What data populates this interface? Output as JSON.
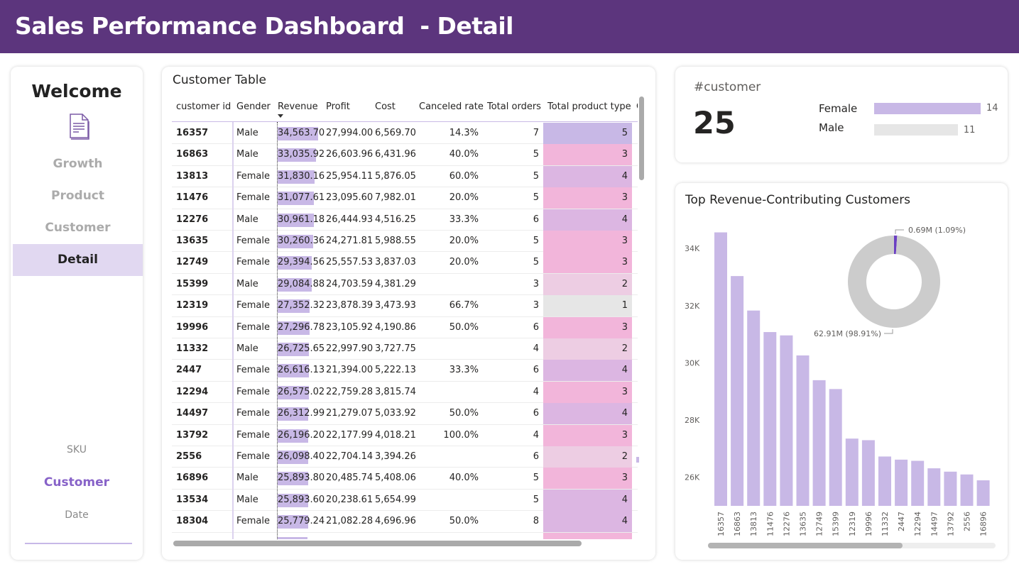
{
  "header": {
    "title": "Sales Performance Dashboard  - Detail"
  },
  "sidebar": {
    "welcome": "Welcome",
    "nav_items": [
      {
        "label": "Growth",
        "active": false
      },
      {
        "label": "Product",
        "active": false
      },
      {
        "label": "Customer",
        "active": false
      },
      {
        "label": "Detail",
        "active": true
      }
    ],
    "sub_items": [
      {
        "label": "SKU",
        "active": false
      },
      {
        "label": "Customer",
        "active": true
      },
      {
        "label": "Date",
        "active": false
      }
    ]
  },
  "table": {
    "title": "Customer Table",
    "columns": [
      "customer id",
      "Gender",
      "Revenue",
      "Profit",
      "Cost",
      "Canceled rate",
      "Total orders",
      "Total product type",
      "C"
    ],
    "sorted_column": "Revenue",
    "rows": [
      {
        "id": "16357",
        "gender": "Male",
        "revenue": "34,563.70",
        "profit": "27,994.00",
        "cost": "6,569.70",
        "canceled": "14.3%",
        "orders": "7",
        "ptype": "5"
      },
      {
        "id": "16863",
        "gender": "Male",
        "revenue": "33,035.92",
        "profit": "26,603.96",
        "cost": "6,431.96",
        "canceled": "40.0%",
        "orders": "5",
        "ptype": "3"
      },
      {
        "id": "13813",
        "gender": "Female",
        "revenue": "31,830.16",
        "profit": "25,954.11",
        "cost": "5,876.05",
        "canceled": "60.0%",
        "orders": "5",
        "ptype": "4"
      },
      {
        "id": "11476",
        "gender": "Female",
        "revenue": "31,077.61",
        "profit": "23,095.60",
        "cost": "7,982.01",
        "canceled": "20.0%",
        "orders": "5",
        "ptype": "3"
      },
      {
        "id": "12276",
        "gender": "Male",
        "revenue": "30,961.18",
        "profit": "26,444.93",
        "cost": "4,516.25",
        "canceled": "33.3%",
        "orders": "6",
        "ptype": "4"
      },
      {
        "id": "13635",
        "gender": "Female",
        "revenue": "30,260.36",
        "profit": "24,271.81",
        "cost": "5,988.55",
        "canceled": "20.0%",
        "orders": "5",
        "ptype": "3"
      },
      {
        "id": "12749",
        "gender": "Female",
        "revenue": "29,394.56",
        "profit": "25,557.53",
        "cost": "3,837.03",
        "canceled": "20.0%",
        "orders": "5",
        "ptype": "3"
      },
      {
        "id": "15399",
        "gender": "Male",
        "revenue": "29,084.88",
        "profit": "24,703.59",
        "cost": "4,381.29",
        "canceled": "",
        "orders": "3",
        "ptype": "2"
      },
      {
        "id": "12319",
        "gender": "Female",
        "revenue": "27,352.32",
        "profit": "23,878.39",
        "cost": "3,473.93",
        "canceled": "66.7%",
        "orders": "3",
        "ptype": "1"
      },
      {
        "id": "19996",
        "gender": "Female",
        "revenue": "27,296.78",
        "profit": "23,105.92",
        "cost": "4,190.86",
        "canceled": "50.0%",
        "orders": "6",
        "ptype": "3"
      },
      {
        "id": "11332",
        "gender": "Male",
        "revenue": "26,725.65",
        "profit": "22,997.90",
        "cost": "3,727.75",
        "canceled": "",
        "orders": "4",
        "ptype": "2"
      },
      {
        "id": "2447",
        "gender": "Female",
        "revenue": "26,616.13",
        "profit": "21,394.00",
        "cost": "5,222.13",
        "canceled": "33.3%",
        "orders": "6",
        "ptype": "4"
      },
      {
        "id": "12294",
        "gender": "Female",
        "revenue": "26,575.02",
        "profit": "22,759.28",
        "cost": "3,815.74",
        "canceled": "",
        "orders": "4",
        "ptype": "3"
      },
      {
        "id": "14497",
        "gender": "Female",
        "revenue": "26,312.99",
        "profit": "21,279.07",
        "cost": "5,033.92",
        "canceled": "50.0%",
        "orders": "6",
        "ptype": "4"
      },
      {
        "id": "13792",
        "gender": "Female",
        "revenue": "26,196.20",
        "profit": "22,177.99",
        "cost": "4,018.21",
        "canceled": "100.0%",
        "orders": "4",
        "ptype": "3"
      },
      {
        "id": "2556",
        "gender": "Female",
        "revenue": "26,098.40",
        "profit": "22,704.14",
        "cost": "3,394.26",
        "canceled": "",
        "orders": "6",
        "ptype": "2"
      },
      {
        "id": "16896",
        "gender": "Male",
        "revenue": "25,893.80",
        "profit": "20,485.74",
        "cost": "5,408.06",
        "canceled": "40.0%",
        "orders": "5",
        "ptype": "3"
      },
      {
        "id": "13534",
        "gender": "Male",
        "revenue": "25,893.60",
        "profit": "20,238.61",
        "cost": "5,654.99",
        "canceled": "",
        "orders": "5",
        "ptype": "4"
      },
      {
        "id": "18304",
        "gender": "Female",
        "revenue": "25,779.24",
        "profit": "21,082.28",
        "cost": "4,696.96",
        "canceled": "50.0%",
        "orders": "8",
        "ptype": "4"
      }
    ],
    "ptype_colors": {
      "1": "#e6e6e6",
      "2": "#edcde3",
      "3": "#f2b5da",
      "4": "#dcb6e2",
      "5": "#c8b8e6"
    },
    "revenue_bar_color": "#c8b8e6"
  },
  "kpi": {
    "label": "#customer",
    "value": "25",
    "gender_breakdown": [
      {
        "label": "Female",
        "value": 14,
        "color": "#c8b8e6"
      },
      {
        "label": "Male",
        "value": 11,
        "color": "#e6e6e6"
      }
    ]
  },
  "chart_data": [
    {
      "type": "bar",
      "title": "Top Revenue-Contributing Customers",
      "categories": [
        "16357",
        "16863",
        "13813",
        "11476",
        "12276",
        "13635",
        "12749",
        "15399",
        "12319",
        "19996",
        "11332",
        "2447",
        "12294",
        "14497",
        "13792",
        "2556",
        "16896"
      ],
      "values": [
        34563.7,
        33035.92,
        31830.16,
        31077.61,
        30961.18,
        30260.36,
        29394.56,
        29084.88,
        27352.32,
        27296.78,
        26725.65,
        26616.13,
        26575.02,
        26312.99,
        26196.2,
        26098.4,
        25893.8
      ],
      "yticks": [
        "26K",
        "28K",
        "30K",
        "32K",
        "34K"
      ],
      "ytick_values": [
        26000,
        28000,
        30000,
        32000,
        34000
      ],
      "ylim": [
        25000,
        34800
      ],
      "xlabel": "",
      "ylabel": "",
      "color": "#c8b8e6",
      "grid": false
    },
    {
      "type": "pie",
      "subtype": "donut",
      "slices": [
        {
          "label": "0.69M (1.09%)",
          "value": 0.69,
          "percent": 1.09,
          "color": "#6b3fc2"
        },
        {
          "label": "62.91M (98.91%)",
          "value": 62.91,
          "percent": 98.91,
          "color": "#cccccc"
        }
      ]
    }
  ]
}
